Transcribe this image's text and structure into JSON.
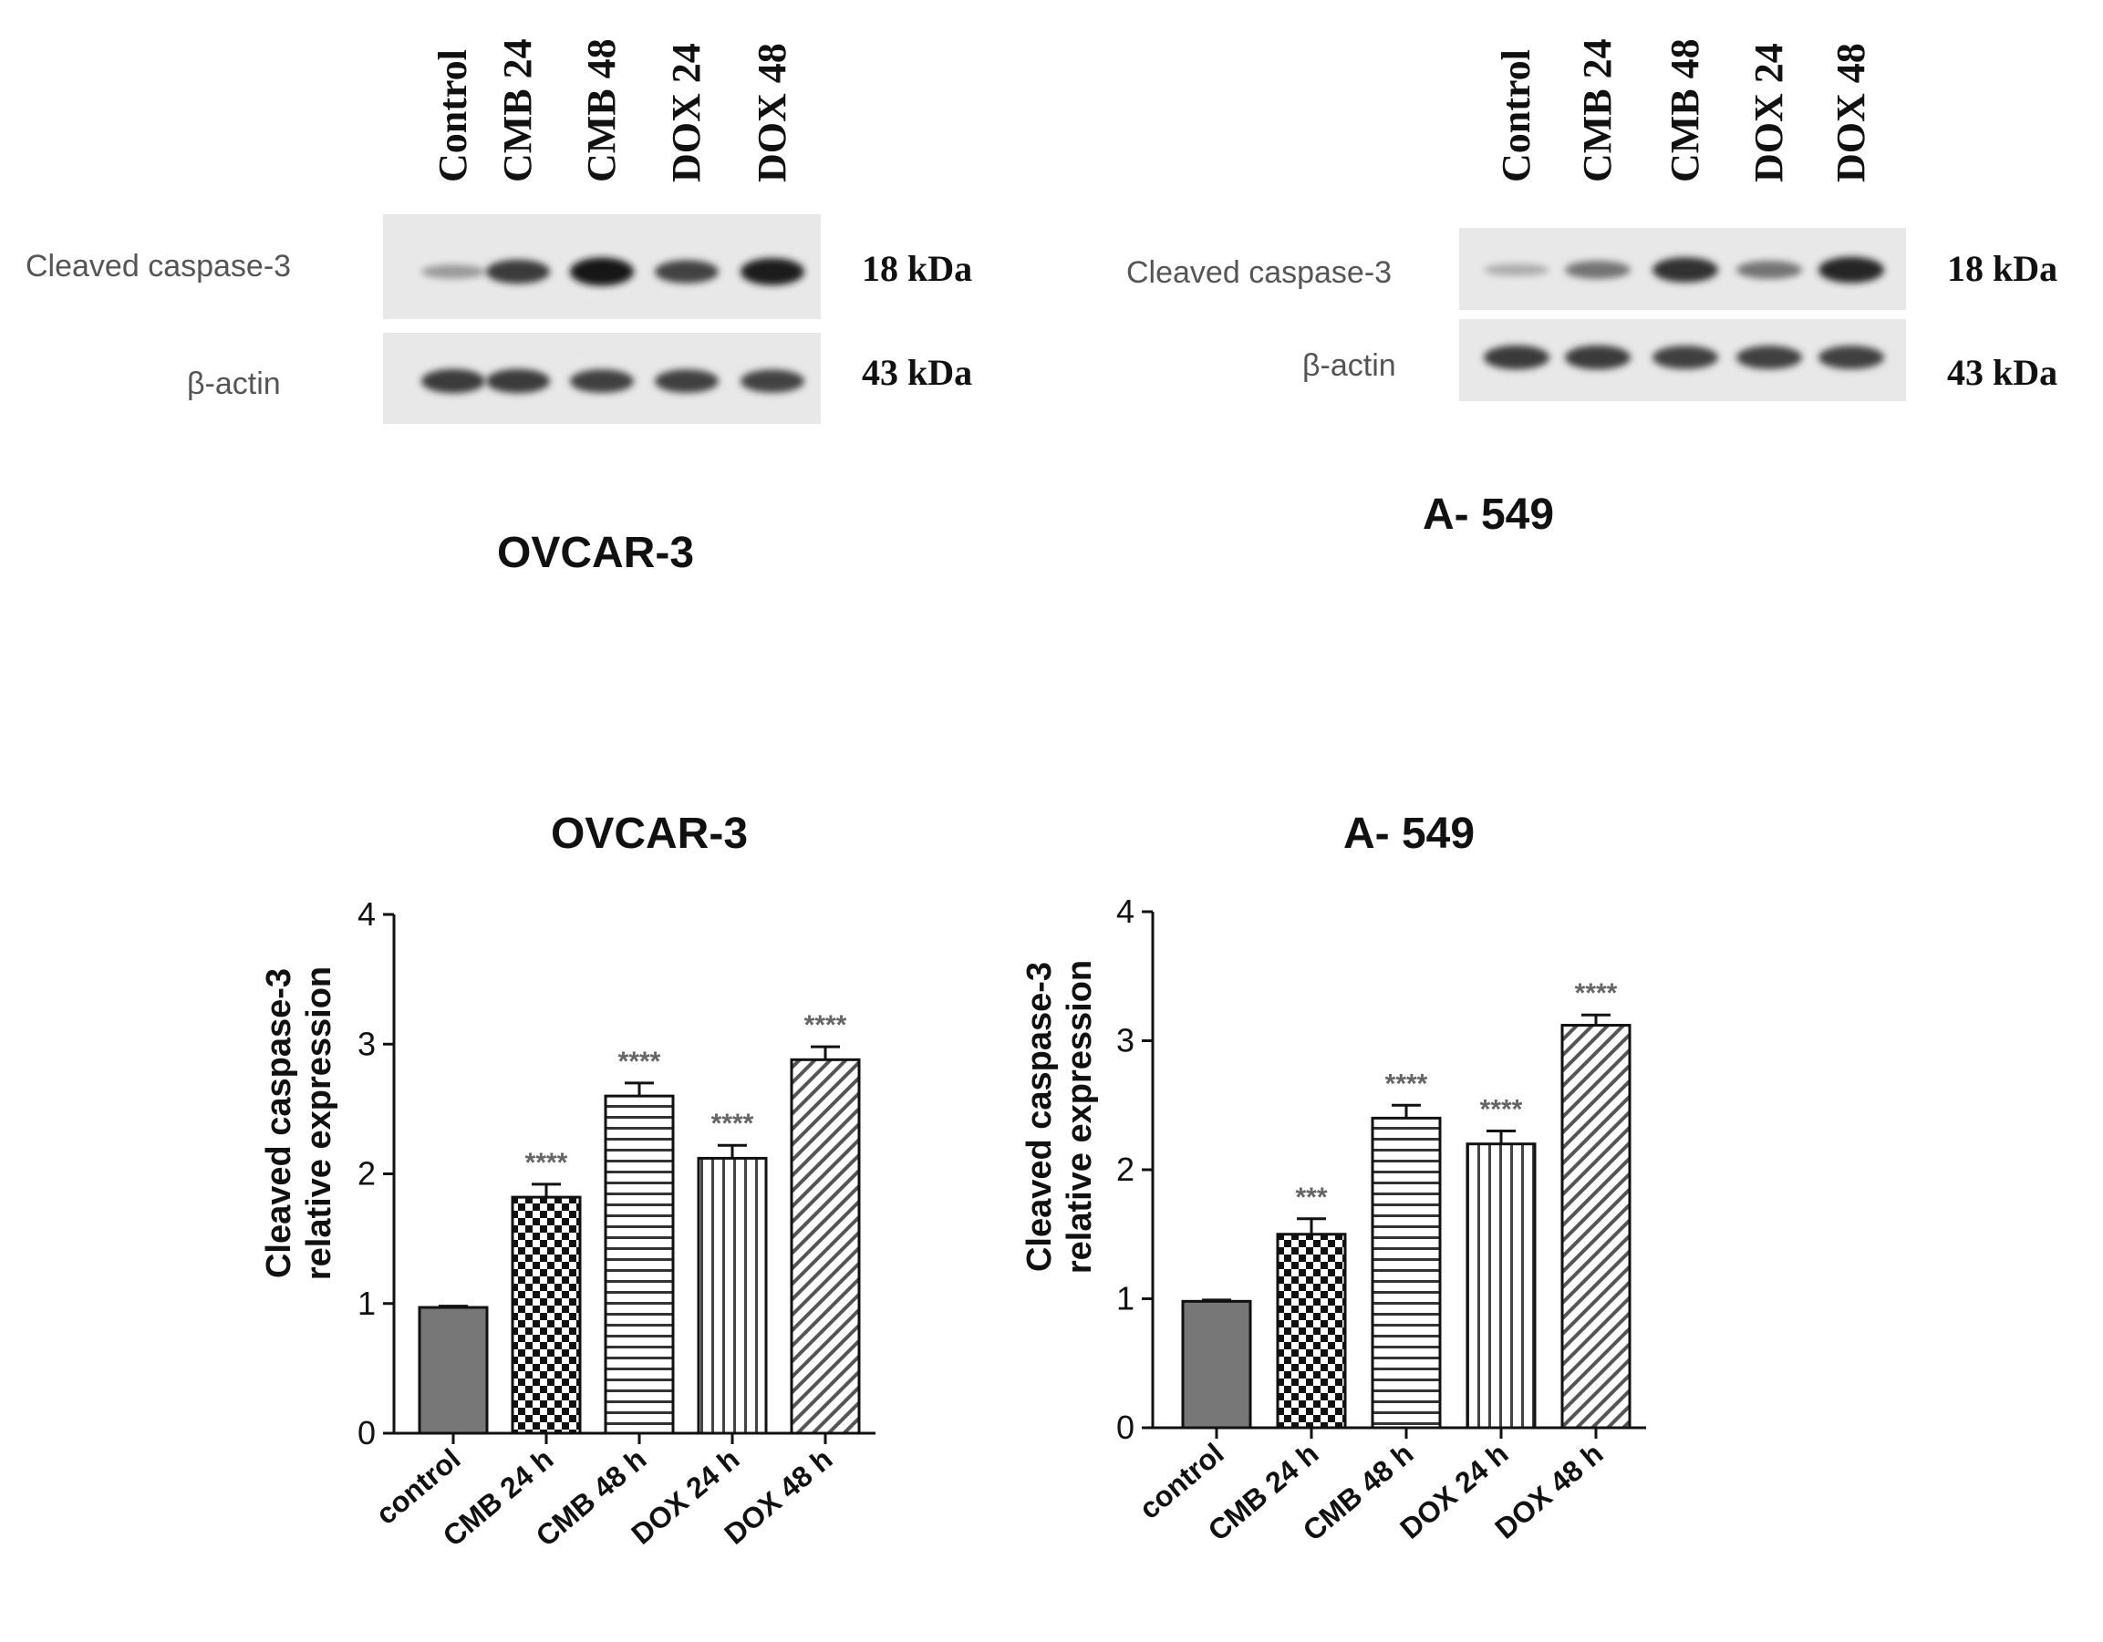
{
  "blots": [
    {
      "cell_line": "OVCAR-3",
      "lanes": [
        "Control",
        "CMB 24",
        "CMB 48",
        "DOX 24",
        "DOX 48"
      ],
      "rows": [
        {
          "protein": "Cleaved caspase-3",
          "kda": "18 kDa",
          "intensity": [
            0.25,
            0.75,
            0.95,
            0.7,
            0.9
          ]
        },
        {
          "protein": "β-actin",
          "kda": "43 kDa",
          "intensity": [
            0.75,
            0.75,
            0.72,
            0.72,
            0.7
          ]
        }
      ]
    },
    {
      "cell_line": "A- 549",
      "lanes": [
        "Control",
        "CMB 24",
        "CMB 48",
        "DOX 24",
        "DOX 48"
      ],
      "rows": [
        {
          "protein": "Cleaved caspase-3",
          "kda": "18 kDa",
          "intensity": [
            0.15,
            0.45,
            0.8,
            0.45,
            0.85
          ]
        },
        {
          "protein": "β-actin",
          "kda": "43 kDa",
          "intensity": [
            0.75,
            0.75,
            0.72,
            0.72,
            0.72
          ]
        }
      ]
    }
  ],
  "chart_data": [
    {
      "type": "bar",
      "title": "OVCAR-3",
      "ylabel_lines": [
        "Cleaved caspase-3",
        "relative expression"
      ],
      "categories": [
        "control",
        "CMB 24 h",
        "CMB 48 h",
        "DOX 24 h",
        "DOX 48 h"
      ],
      "values": [
        0.97,
        1.82,
        2.6,
        2.12,
        2.88
      ],
      "errors": [
        0.01,
        0.1,
        0.1,
        0.1,
        0.1
      ],
      "significance": [
        "",
        "****",
        "****",
        "****",
        "****"
      ],
      "patterns": [
        "solid",
        "checker",
        "hstripes",
        "vstripes",
        "diagonal"
      ],
      "ylim": [
        0,
        4
      ],
      "yticks": [
        0,
        1,
        2,
        3,
        4
      ],
      "grid": false
    },
    {
      "type": "bar",
      "title": "A- 549",
      "ylabel_lines": [
        "Cleaved caspase-3",
        "relative expression"
      ],
      "categories": [
        "control",
        "CMB 24 h",
        "CMB 48 h",
        "DOX 24 h",
        "DOX 48 h"
      ],
      "values": [
        0.98,
        1.5,
        2.4,
        2.2,
        3.12
      ],
      "errors": [
        0.01,
        0.12,
        0.1,
        0.1,
        0.08
      ],
      "significance": [
        "",
        "***",
        "****",
        "****",
        "****"
      ],
      "patterns": [
        "solid",
        "checker",
        "hstripes",
        "vstripes",
        "diagonal"
      ],
      "ylim": [
        0,
        4
      ],
      "yticks": [
        0,
        1,
        2,
        3,
        4
      ],
      "grid": false
    }
  ]
}
